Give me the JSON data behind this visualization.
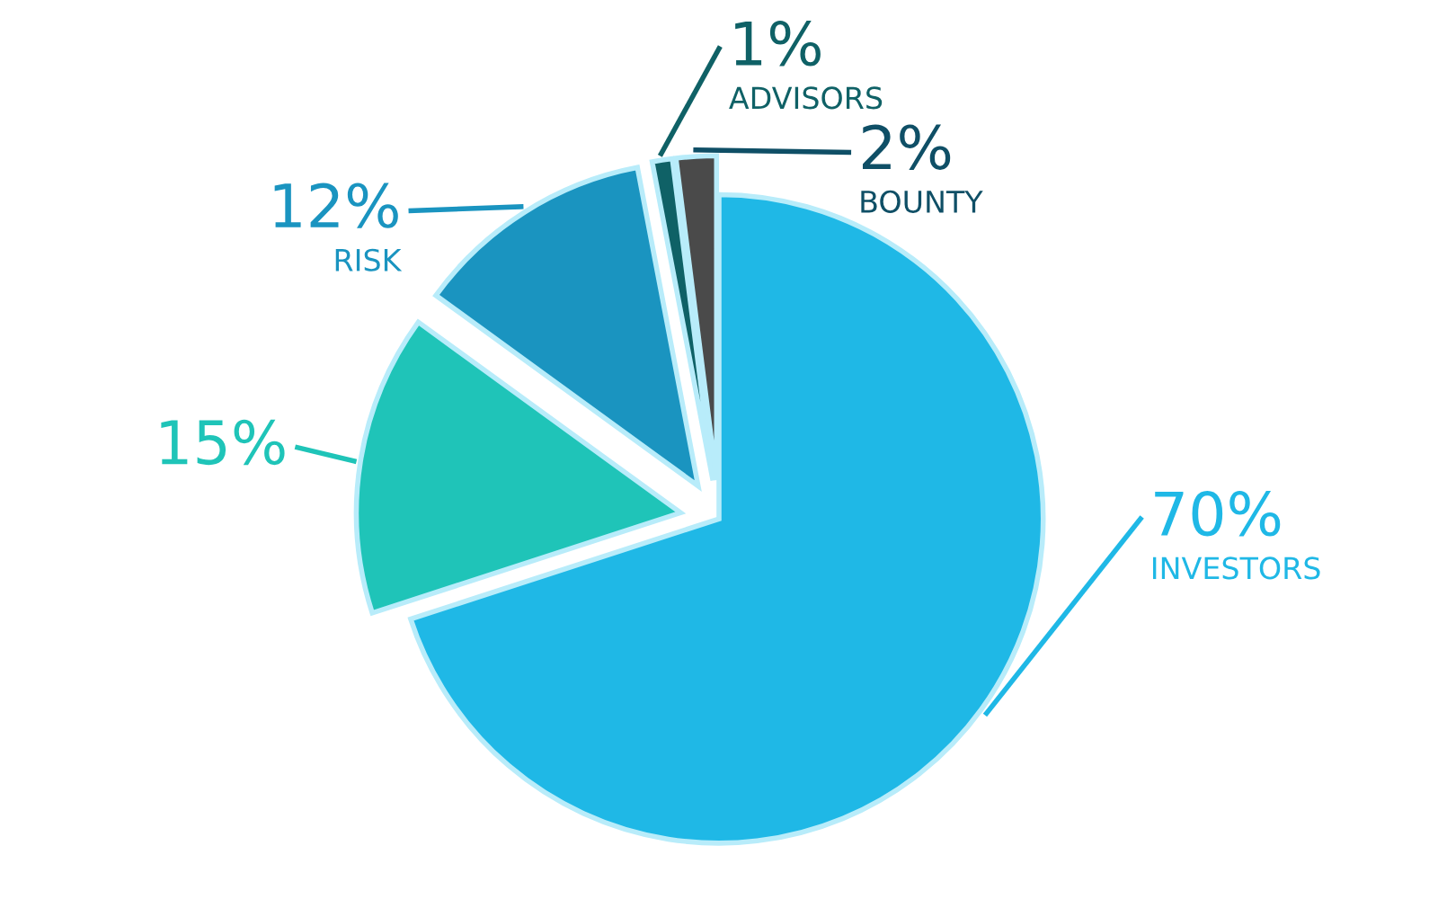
{
  "chart_data": {
    "type": "pie",
    "categories": [
      "INVESTORS",
      null,
      "RISK",
      "ADVISORS",
      "BOUNTY"
    ],
    "values": [
      70,
      15,
      12,
      1,
      2
    ],
    "value_labels": [
      "70%",
      "15%",
      "12%",
      "1%",
      "2%"
    ],
    "colors": [
      "#1fb8e6",
      "#1fc4b8",
      "#1a94c0",
      "#0f6166",
      "#4a4a4a"
    ],
    "legend": false
  }
}
